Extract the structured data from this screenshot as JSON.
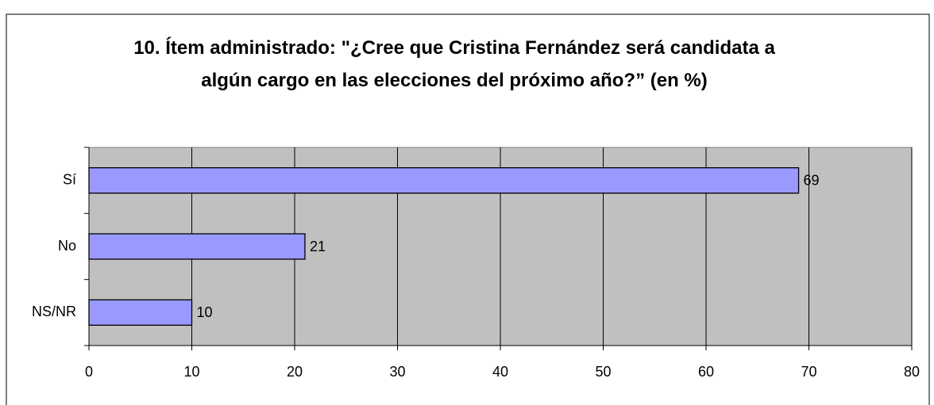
{
  "chart_data": {
    "type": "hbar",
    "title": "10. Ítem administrado: \"¿Cree que Cristina Fernández será candidata a algún cargo en las elecciones del próximo año?” (en %)",
    "categories": [
      "Sí",
      "No",
      "NS/NR"
    ],
    "values": [
      69,
      21,
      10
    ],
    "color": "#9999ff",
    "xlim": [
      0,
      80
    ],
    "xticks": [
      0,
      10,
      20,
      30,
      40,
      50,
      60,
      70,
      80
    ],
    "grid": true,
    "plot_background": "#c0c0c0"
  }
}
